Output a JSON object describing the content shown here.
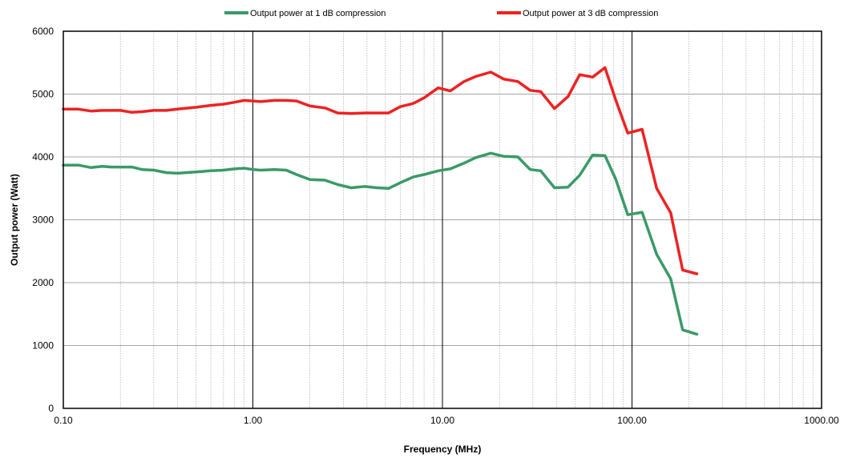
{
  "chart_data": {
    "type": "line",
    "title": "",
    "xlabel": "Frequency  (MHz)",
    "ylabel": "Output power (Watt)",
    "x_scale": "log",
    "xlim": [
      0.1,
      1000
    ],
    "ylim": [
      0,
      6000
    ],
    "x_ticks": [
      "0.10",
      "1.00",
      "10.00",
      "100.00",
      "1000.00"
    ],
    "y_ticks": [
      "0",
      "1000",
      "2000",
      "3000",
      "4000",
      "5000",
      "6000"
    ],
    "grid": true,
    "legend_position": "top",
    "series": [
      {
        "name": "Output power at 1 dB compression",
        "color": "#3a9a68",
        "x": [
          0.1,
          0.12,
          0.14,
          0.16,
          0.18,
          0.2,
          0.23,
          0.26,
          0.3,
          0.35,
          0.4,
          0.5,
          0.6,
          0.7,
          0.8,
          0.9,
          1.0,
          1.1,
          1.3,
          1.5,
          1.7,
          2.0,
          2.4,
          2.8,
          3.3,
          3.9,
          4.5,
          5.2,
          6.0,
          7.0,
          8.0,
          9.5,
          11,
          13,
          15,
          18,
          21,
          25,
          29,
          33,
          39,
          46,
          53,
          62,
          72,
          82,
          95,
          113,
          135,
          160,
          185,
          220
        ],
        "values": [
          3870,
          3870,
          3830,
          3850,
          3840,
          3840,
          3840,
          3800,
          3790,
          3750,
          3740,
          3760,
          3780,
          3790,
          3810,
          3820,
          3800,
          3790,
          3800,
          3790,
          3720,
          3640,
          3630,
          3560,
          3510,
          3530,
          3510,
          3500,
          3590,
          3680,
          3720,
          3780,
          3810,
          3900,
          3990,
          4060,
          4010,
          4000,
          3800,
          3780,
          3510,
          3520,
          3710,
          4030,
          4020,
          3650,
          3080,
          3120,
          2450,
          2060,
          1250,
          1180
        ]
      },
      {
        "name": "Output power at 3 dB compression",
        "color": "#ee2222",
        "x": [
          0.1,
          0.12,
          0.14,
          0.16,
          0.18,
          0.2,
          0.23,
          0.26,
          0.3,
          0.35,
          0.4,
          0.5,
          0.6,
          0.7,
          0.8,
          0.9,
          1.0,
          1.1,
          1.3,
          1.5,
          1.7,
          2.0,
          2.4,
          2.8,
          3.3,
          3.9,
          4.5,
          5.2,
          6.0,
          7.0,
          8.0,
          9.5,
          11,
          13,
          15,
          18,
          21,
          25,
          29,
          33,
          39,
          46,
          53,
          62,
          72,
          82,
          95,
          113,
          135,
          160,
          185,
          220
        ],
        "values": [
          4760,
          4760,
          4730,
          4740,
          4740,
          4740,
          4710,
          4720,
          4740,
          4740,
          4760,
          4790,
          4820,
          4840,
          4870,
          4900,
          4890,
          4880,
          4900,
          4900,
          4890,
          4810,
          4780,
          4700,
          4690,
          4700,
          4700,
          4700,
          4800,
          4850,
          4940,
          5100,
          5050,
          5200,
          5280,
          5350,
          5240,
          5200,
          5060,
          5040,
          4770,
          4960,
          5310,
          5270,
          5420,
          4910,
          4380,
          4440,
          3500,
          3110,
          2200,
          2140
        ]
      }
    ]
  }
}
